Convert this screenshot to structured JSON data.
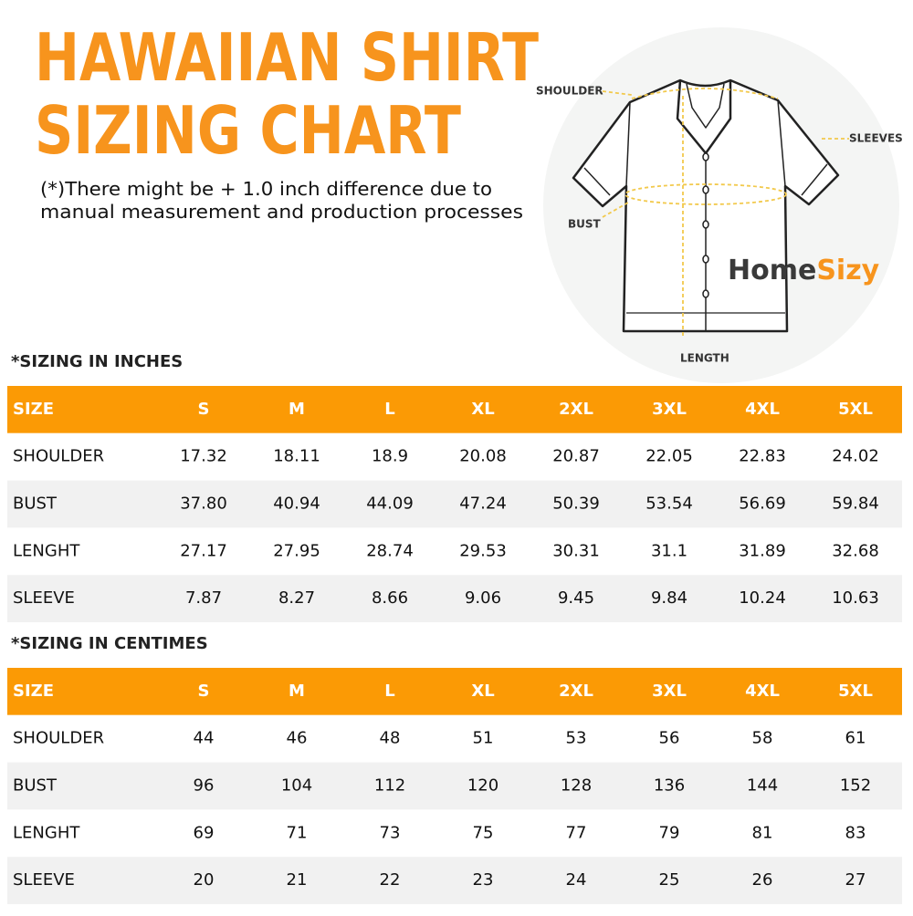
{
  "header": {
    "title_lines": [
      "HAWAIIAN SHIRT",
      "SIZING CHART"
    ],
    "note_lines": [
      "(*)There might be + 1.0 inch difference due to",
      "manual measurement and production processes"
    ]
  },
  "diagram": {
    "shoulder": "SHOULDER",
    "sleeves": "SLEEVES",
    "bust": "BUST",
    "length": "LENGTH",
    "brand": [
      "Home",
      "Sizy"
    ]
  },
  "tables": [
    {
      "caption": "*SIZING IN INCHES",
      "columns": [
        "SIZE",
        "S",
        "M",
        "L",
        "XL",
        "2XL",
        "3XL",
        "4XL",
        "5XL"
      ],
      "rows": [
        [
          "SHOULDER",
          "17.32",
          "18.11",
          "18.9",
          "20.08",
          "20.87",
          "22.05",
          "22.83",
          "24.02"
        ],
        [
          "BUST",
          "37.80",
          "40.94",
          "44.09",
          "47.24",
          "50.39",
          "53.54",
          "56.69",
          "59.84"
        ],
        [
          "LENGHT",
          "27.17",
          "27.95",
          "28.74",
          "29.53",
          "30.31",
          "31.1",
          "31.89",
          "32.68"
        ],
        [
          "SLEEVE",
          "7.87",
          "8.27",
          "8.66",
          "9.06",
          "9.45",
          "9.84",
          "10.24",
          "10.63"
        ]
      ]
    },
    {
      "caption": "*SIZING IN CENTIMES",
      "columns": [
        "SIZE",
        "S",
        "M",
        "L",
        "XL",
        "2XL",
        "3XL",
        "4XL",
        "5XL"
      ],
      "rows": [
        [
          "SHOULDER",
          "44",
          "46",
          "48",
          "51",
          "53",
          "56",
          "58",
          "61"
        ],
        [
          "BUST",
          "96",
          "104",
          "112",
          "120",
          "128",
          "136",
          "144",
          "152"
        ],
        [
          "LENGHT",
          "69",
          "71",
          "73",
          "75",
          "77",
          "79",
          "81",
          "83"
        ],
        [
          "SLEEVE",
          "20",
          "21",
          "22",
          "23",
          "24",
          "25",
          "26",
          "27"
        ]
      ]
    }
  ]
}
